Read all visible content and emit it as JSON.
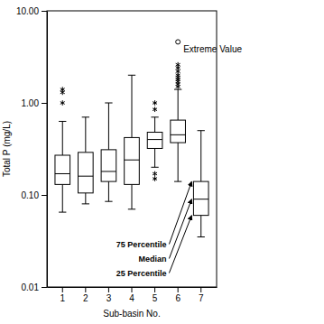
{
  "chart_data": {
    "type": "box",
    "x_label": "Sub-basin No.",
    "y_label": "Total P (mg/L)",
    "categories": [
      "1",
      "2",
      "3",
      "4",
      "5",
      "6",
      "7"
    ],
    "whisker_low": [
      0.065,
      0.08,
      0.085,
      0.07,
      0.2,
      0.14,
      0.035
    ],
    "q1": [
      0.13,
      0.105,
      0.14,
      0.13,
      0.32,
      0.37,
      0.06
    ],
    "median": [
      0.17,
      0.16,
      0.18,
      0.24,
      0.4,
      0.45,
      0.09
    ],
    "q3": [
      0.27,
      0.29,
      0.31,
      0.42,
      0.48,
      0.65,
      0.14
    ],
    "whisker_high": [
      0.63,
      0.7,
      1.0,
      2.0,
      0.7,
      1.4,
      0.5
    ],
    "outliers": [
      [
        1.0,
        1.3,
        1.4
      ],
      [],
      [],
      [],
      [
        0.85,
        1.0,
        0.17,
        0.15
      ],
      [
        1.5,
        1.6,
        1.7,
        1.8,
        1.9,
        2.0,
        2.2,
        2.4,
        2.6
      ],
      []
    ],
    "extreme": [
      null,
      null,
      null,
      null,
      null,
      4.6,
      null
    ],
    "annotations": {
      "extreme": "Extreme Value",
      "q3": "75 Percentile",
      "median": "Median",
      "q1": "25 Percentile"
    },
    "ylim": [
      0.01,
      10
    ],
    "yticks": [
      0.01,
      {
        "value": 0.1,
        "label": "0.10"
      },
      {
        "value": 1,
        "label": "1.00"
      },
      {
        "value": 10,
        "label": "10.00"
      }
    ],
    "log": "y",
    "grid": false,
    "marker": "asterisk",
    "color": "#000000"
  }
}
